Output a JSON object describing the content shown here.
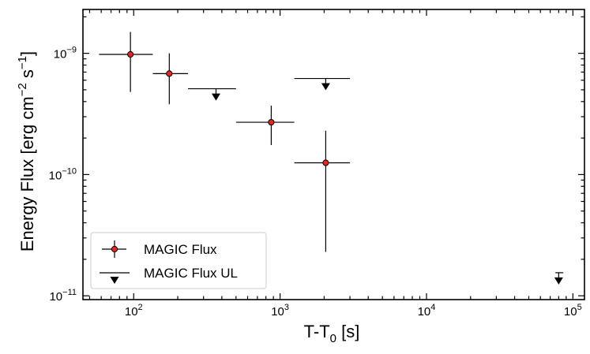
{
  "chart_data": {
    "type": "scatter",
    "title": "",
    "xlabel": "T-T",
    "xlabel_sub": "0",
    "xlabel_unit": " [s]",
    "ylabel": "Energy Flux [erg cm",
    "ylabel_exp1": "−2",
    "ylabel_mid": " s",
    "ylabel_exp2": "−1",
    "ylabel_end": "]",
    "x_scale": "log",
    "y_scale": "log",
    "xlim": [
      45,
      120000
    ],
    "ylim": [
      9.3e-12,
      2.3e-09
    ],
    "x_ticks": [
      {
        "value": 100,
        "base": "10",
        "exp": "2"
      },
      {
        "value": 1000,
        "base": "10",
        "exp": "3"
      },
      {
        "value": 10000,
        "base": "10",
        "exp": "4"
      },
      {
        "value": 100000,
        "base": "10",
        "exp": "5"
      }
    ],
    "y_ticks": [
      {
        "value": 1e-09,
        "base": "10",
        "exp": "−9"
      },
      {
        "value": 1e-10,
        "base": "10",
        "exp": "−10"
      },
      {
        "value": 1e-11,
        "base": "10",
        "exp": "−11"
      }
    ],
    "grid": false,
    "legend_position": "lower-left",
    "series": [
      {
        "name": "MAGIC Flux",
        "color": "#e8251f",
        "marker": "circle",
        "points": [
          {
            "x": 95,
            "x_low": 58,
            "x_high": 135,
            "y": 9.8e-10,
            "y_low": 4.8e-10,
            "y_high": 1.5e-09
          },
          {
            "x": 175,
            "x_low": 135,
            "x_high": 235,
            "y": 6.8e-10,
            "y_low": 3.8e-10,
            "y_high": 1e-09
          },
          {
            "x": 870,
            "x_low": 500,
            "x_high": 1250,
            "y": 2.7e-10,
            "y_low": 1.75e-10,
            "y_high": 3.7e-10
          },
          {
            "x": 2050,
            "x_low": 1250,
            "x_high": 3000,
            "y": 1.25e-10,
            "y_low": 2.3e-11,
            "y_high": 2.3e-10
          }
        ]
      },
      {
        "name": "MAGIC Flux UL",
        "color": "#000000",
        "marker": "down-arrow",
        "points": [
          {
            "x": 365,
            "x_low": 235,
            "x_high": 500,
            "y": 5.1e-10
          },
          {
            "x": 2050,
            "x_low": 1250,
            "x_high": 3000,
            "y": 6.2e-10
          },
          {
            "x": 80000,
            "x_low": 76000,
            "x_high": 86000,
            "y": 1.55e-11
          }
        ]
      }
    ]
  }
}
